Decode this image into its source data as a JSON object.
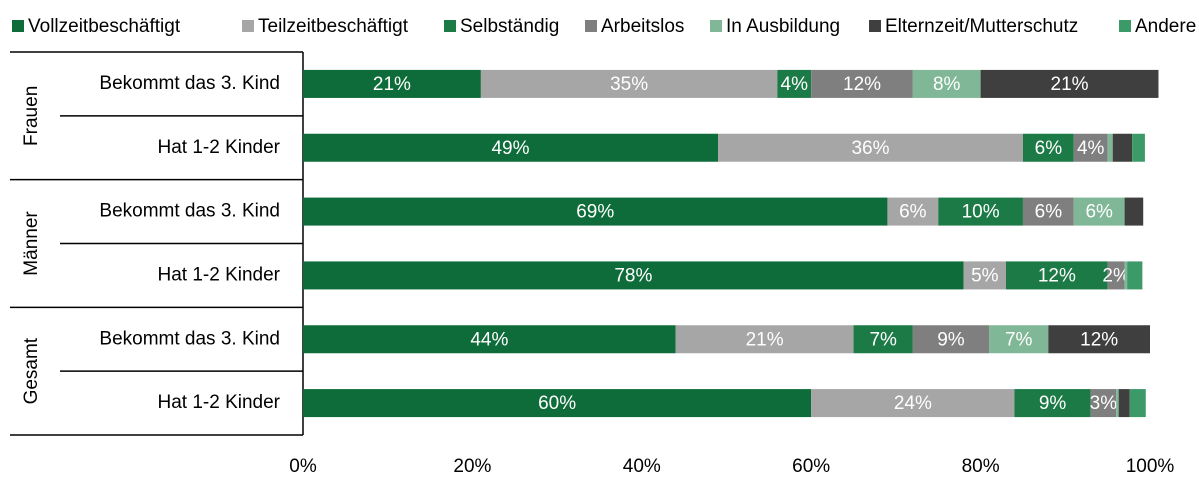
{
  "chart_data": {
    "type": "stacked_barh",
    "groups": [
      "Frauen",
      "Männer",
      "Gesamt"
    ],
    "categories": [
      "Bekommt das 3. Kind",
      "Hat 1-2 Kinder",
      "Bekommt das 3. Kind",
      "Hat 1-2 Kinder",
      "Bekommt das 3. Kind",
      "Hat 1-2 Kinder"
    ],
    "series": [
      {
        "name": "Vollzeitbeschäftigt",
        "color": "#0e6b3a",
        "values": [
          21,
          49,
          69,
          78,
          44,
          60
        ],
        "value_labels": [
          "21%",
          "49%",
          "69%",
          "78%",
          "44%",
          "60%"
        ]
      },
      {
        "name": "Teilzeitbeschäftigt",
        "color": "#a6a6a6",
        "values": [
          35,
          36,
          6,
          5,
          21,
          24
        ],
        "value_labels": [
          "35%",
          "36%",
          "6%",
          "5%",
          "21%",
          "24%"
        ]
      },
      {
        "name": "Selbständig",
        "color": "#1c7a46",
        "values": [
          4,
          6,
          10,
          12,
          7,
          9
        ],
        "value_labels": [
          "4%",
          "6%",
          "10%",
          "12%",
          "7%",
          "9%"
        ]
      },
      {
        "name": "Arbeitslos",
        "color": "#7f7f7f",
        "values": [
          12,
          4,
          6,
          2,
          9,
          3
        ],
        "value_labels": [
          "12%",
          "4%",
          "6%",
          "2%",
          "9%",
          "3%"
        ]
      },
      {
        "name": "In Ausbildung",
        "color": "#7fb797",
        "values": [
          8,
          0.6,
          6,
          0.3,
          7,
          0.3
        ],
        "value_labels": [
          "8%",
          null,
          "6%",
          null,
          "7%",
          null
        ]
      },
      {
        "name": "Elternzeit/Mutterschutz",
        "color": "#3f3f3f",
        "values": [
          21,
          2.3,
          2.2,
          0,
          12,
          1.3
        ],
        "value_labels": [
          "21%",
          null,
          null,
          null,
          "12%",
          null
        ]
      },
      {
        "name": "Andere",
        "color": "#3c9a68",
        "values": [
          0,
          1.5,
          0,
          1.8,
          0,
          1.9
        ],
        "value_labels": [
          null,
          null,
          null,
          null,
          null,
          null
        ]
      }
    ],
    "xlim": [
      0,
      100
    ],
    "xticks": [
      {
        "value": 0,
        "label": "0%"
      },
      {
        "value": 20,
        "label": "20%"
      },
      {
        "value": 40,
        "label": "40%"
      },
      {
        "value": 60,
        "label": "60%"
      },
      {
        "value": 80,
        "label": "80%"
      },
      {
        "value": 100,
        "label": "100%"
      }
    ],
    "legend": "top"
  }
}
